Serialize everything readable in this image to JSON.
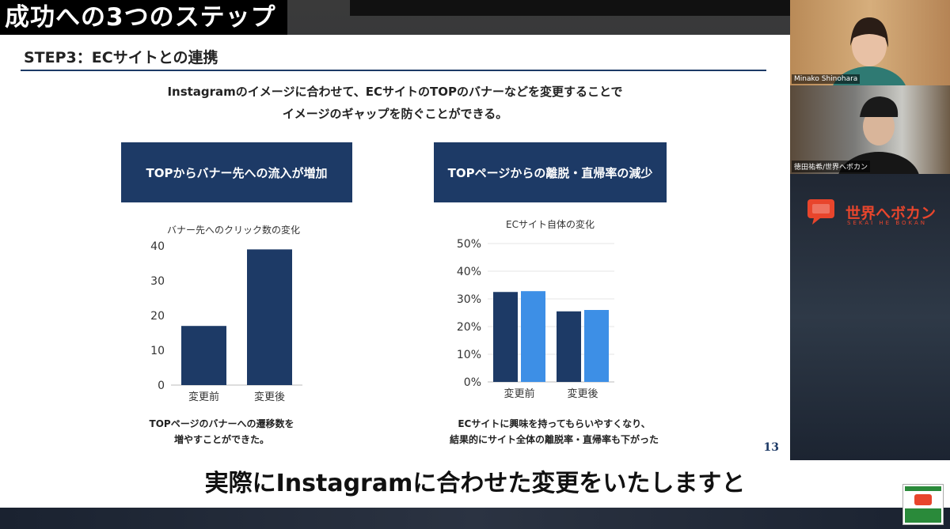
{
  "header": {
    "corner_title": "成功への3つのステップ"
  },
  "slide": {
    "step_heading": "STEP3：ECサイトとの連携",
    "intro_line1": "Instagramのイメージに合わせて、ECサイトのTOPのバナーなどを変更することで",
    "intro_line2": "イメージのギャップを防ぐことができる。",
    "left_panel": {
      "box_label": "TOPからバナー先への流入が増加",
      "caption_line1": "TOPページのバナーへの遷移数を",
      "caption_line2": "増やすことができた。"
    },
    "right_panel": {
      "box_label": "TOPページからの離脱・直帰率の減少",
      "caption_line1": "ECサイトに興味を持ってもらいやすくなり、",
      "caption_line2": "結果的にサイト全体の離脱率・直帰率も下がった"
    },
    "page_number": "13"
  },
  "chart_data": [
    {
      "type": "bar",
      "title": "バナー先へのクリック数の変化",
      "categories": [
        "変更前",
        "変更後"
      ],
      "values": [
        17,
        39
      ],
      "ylim": [
        0,
        40
      ],
      "yticks": [
        "0",
        "10",
        "20",
        "30",
        "40"
      ],
      "colors": [
        "#1d3a66"
      ]
    },
    {
      "type": "bar",
      "title": "ECサイト自体の変化",
      "categories": [
        "変更前",
        "変更後"
      ],
      "series": [
        {
          "values": [
            32.5,
            25.5
          ],
          "color": "#1d3a66"
        },
        {
          "values": [
            32.8,
            26.0
          ],
          "color": "#3d8fe6"
        }
      ],
      "ylim": [
        0,
        50
      ],
      "yticks": [
        "0%",
        "10%",
        "20%",
        "30%",
        "40%",
        "50%"
      ]
    }
  ],
  "sidebar": {
    "participant1_name": "Minako Shinohara",
    "participant2_name": "徳田祐希/世界へボカン",
    "logo_text": "世界へボカン",
    "logo_sub": "SEKAI HE BOKAN"
  },
  "subtitle": {
    "text": "実際にInstagramに合わせた変更をいたしますと"
  }
}
